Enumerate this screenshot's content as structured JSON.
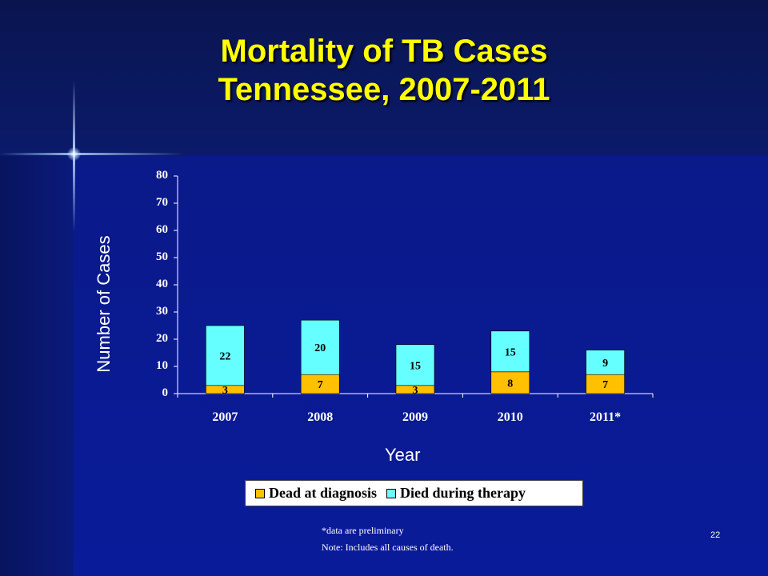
{
  "slide": {
    "title_line1": "Mortality of TB Cases",
    "title_line2": "Tennessee, 2007-2011",
    "footnote1": "*data are preliminary",
    "footnote2": "Note: Includes all causes of death.",
    "page_number": "22"
  },
  "colors": {
    "title": "#ffff00",
    "dead_at_diagnosis": "#ffc000",
    "died_during_therapy": "#66ffff"
  },
  "chart_data": {
    "type": "bar",
    "stacked": true,
    "categories": [
      "2007",
      "2008",
      "2009",
      "2010",
      "2011*"
    ],
    "series": [
      {
        "name": "Dead at diagnosis",
        "values": [
          3,
          7,
          3,
          8,
          7
        ]
      },
      {
        "name": "Died during therapy",
        "values": [
          22,
          20,
          15,
          15,
          9
        ]
      }
    ],
    "ylim": [
      0,
      80
    ],
    "yticks": [
      0,
      10,
      20,
      30,
      40,
      50,
      60,
      70,
      80
    ],
    "xlabel": "Year",
    "ylabel": "Number of Cases",
    "legend_position": "bottom",
    "grid": false
  }
}
